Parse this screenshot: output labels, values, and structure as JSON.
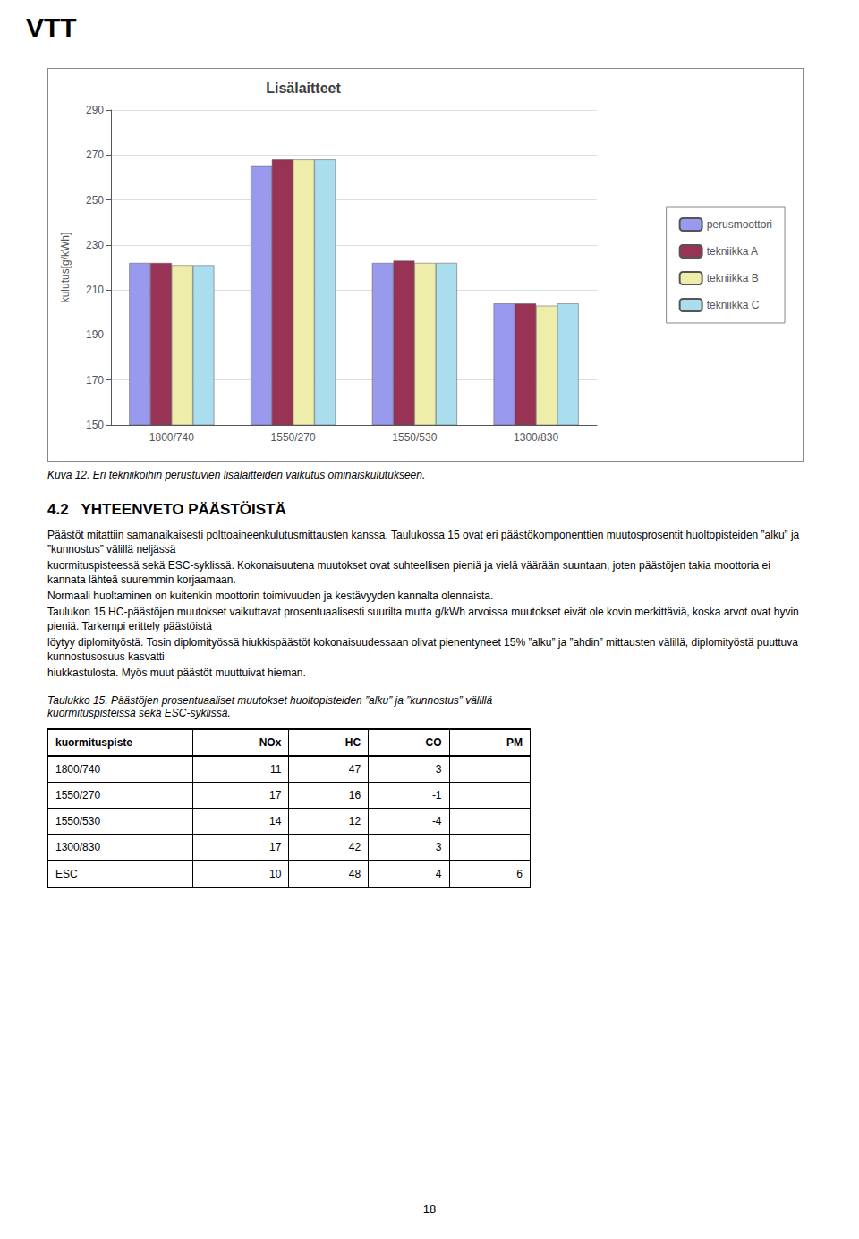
{
  "chart_data": {
    "type": "bar",
    "title": "Lisälaitteet",
    "ylabel": "kulutus[g/kWh]",
    "categories": [
      "1800/740",
      "1550/270",
      "1550/530",
      "1300/830"
    ],
    "series": [
      {
        "name": "perusmoottori",
        "color": "#9999ee",
        "values": [
          222,
          265,
          222,
          204
        ]
      },
      {
        "name": "tekniikka A",
        "color": "#993355",
        "values": [
          222,
          268,
          223,
          204
        ]
      },
      {
        "name": "tekniikka B",
        "color": "#eeeeaa",
        "values": [
          221,
          268,
          222,
          203
        ]
      },
      {
        "name": "tekniikka C",
        "color": "#aaddee",
        "values": [
          221,
          268,
          222,
          204
        ]
      }
    ],
    "ylim": [
      150,
      290
    ],
    "yticks": [
      150,
      170,
      190,
      210,
      230,
      250,
      270,
      290
    ],
    "grid": true,
    "legend": "right",
    "annotations": [
      "VTT",
      "Kuva 12. Eri tekniikoihin perustuvien lisälaitteiden vaikutus ominaiskulutukseen.",
      "4.2   YHTEENVETO PÄÄSTÖISTÄ",
      "Päästöt mitattiin samanaikaisesti polttoaineenkulutusmittausten kanssa. Taulukossa 15 ovat eri päästökomponenttien muutosprosentit huoltopisteiden ”alku” ja ”kunnostus” välillä neljässä",
      "kuormituspisteessä sekä ESC-syklissä. Kokonaisuutena muutokset ovat suhteellisen pieniä ja vielä väärään suuntaan, joten päästöjen takia moottoria ei kannata lähteä suuremmin korjaamaan.",
      "Normaali huoltaminen on kuitenkin moottorin toimivuuden ja kestävyyden kannalta olennaista.",
      "Taulukon 15 HC-päästöjen muutokset vaikuttavat prosentuaalisesti suurilta mutta g/kWh arvoissa muutokset eivät ole kovin merkittäviä, koska arvot ovat hyvin pieniä. Tarkempi erittely päästöistä",
      "löytyy diplomityöstä. Tosin diplomityössä hiukkispäästöt kokonaisuudessaan olivat pienentyneet 15% ”alku” ja ”ahdin” mittausten välillä, diplomityöstä puuttuva kunnostusosuus kasvatti",
      "hiukkastulosta. Myös muut päästöt muuttuivat hieman.",
      "Taulukko 15. Päästöjen prosentuaaliset muutokset huoltopisteiden ”alku” ja ”kunnostus” välillä",
      "kuormituspisteissä sekä ESC-syklissä.",
      "18"
    ]
  },
  "table": {
    "headers": [
      "kuormituspiste",
      "NOx",
      "HC",
      "CO",
      "PM"
    ],
    "rows": [
      [
        "1800/740",
        "11",
        "47",
        "3",
        null
      ],
      [
        "1550/270",
        "17",
        "16",
        "-1",
        null
      ],
      [
        "1550/530",
        "14",
        "12",
        "-4",
        null
      ],
      [
        "1300/830",
        "17",
        "42",
        "3",
        null
      ],
      [
        "ESC",
        "10",
        "48",
        "4",
        "6"
      ]
    ]
  }
}
